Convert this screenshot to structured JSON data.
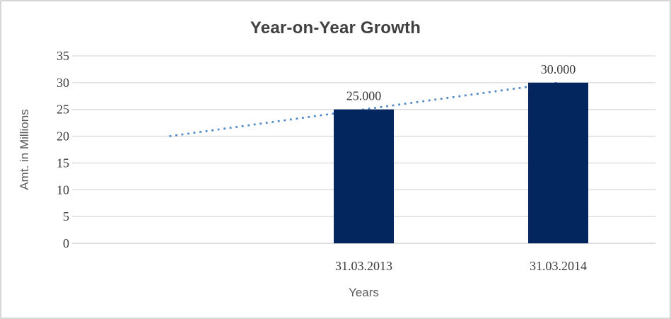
{
  "window": {
    "background": "#ffffff",
    "border_color": "#d7d7d7"
  },
  "chart_data": {
    "type": "bar",
    "title": "Year-on-Year Growth",
    "categories": [
      "31.03.2013",
      "31.03.2014"
    ],
    "series": [
      {
        "name": "Amt. in Millions",
        "values": [
          25,
          30
        ]
      }
    ],
    "data_labels": [
      "25.000",
      "30.000"
    ],
    "xlabel": "Years",
    "ylabel": "Amt. in Millions",
    "ylim": [
      0,
      35
    ],
    "ytick_step": 5,
    "ytick_labels": [
      "0",
      "5",
      "10",
      "15",
      "20",
      "25",
      "30",
      "35"
    ],
    "grid": true,
    "legend": "none",
    "trendline": {
      "type": "linear",
      "style": "dotted",
      "start_value": 20,
      "end_value": 30,
      "color": "#4d86c6"
    },
    "colors": {
      "bar_fill": "#03265e",
      "gridline": "#d9d9d9",
      "axis_line": "#c6c6c6",
      "title_text": "#404040",
      "tick_label_text": "#3b3b3b",
      "axis_title_text": "#595959"
    }
  }
}
